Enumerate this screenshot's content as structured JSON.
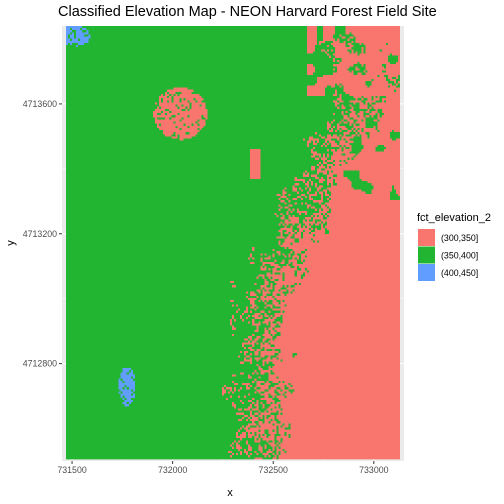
{
  "chart_data": {
    "type": "heatmap",
    "title": "Classified Elevation Map - NEON Harvard Forest Field Site",
    "xlabel": "x",
    "ylabel": "y",
    "xlim": [
      731450,
      733150
    ],
    "ylim": [
      4712500,
      4713840
    ],
    "x_ticks": [
      731500,
      732000,
      732500,
      733000
    ],
    "y_ticks": [
      4712800,
      4713200,
      4713600
    ],
    "x_tick_labels": [
      "731500",
      "732000",
      "732500",
      "733000"
    ],
    "y_tick_labels": [
      "4712800",
      "4713200",
      "4713600"
    ],
    "grid": true,
    "legend": {
      "title": "fct_elevation_2",
      "placement": "right",
      "entries": [
        {
          "label": "(300,350]",
          "color": "#F8766D"
        },
        {
          "label": "(350,400]",
          "color": "#21B532"
        },
        {
          "label": "(400,450]",
          "color": "#619CFF"
        }
      ]
    },
    "classes": [
      "(300,350]",
      "(350,400]",
      "(400,450]"
    ]
  },
  "colors": {
    "panel_background": "#EBEBEB",
    "grid_major": "#FFFFFF",
    "low": "#F8766D",
    "mid": "#21B532",
    "high": "#619CFF"
  }
}
